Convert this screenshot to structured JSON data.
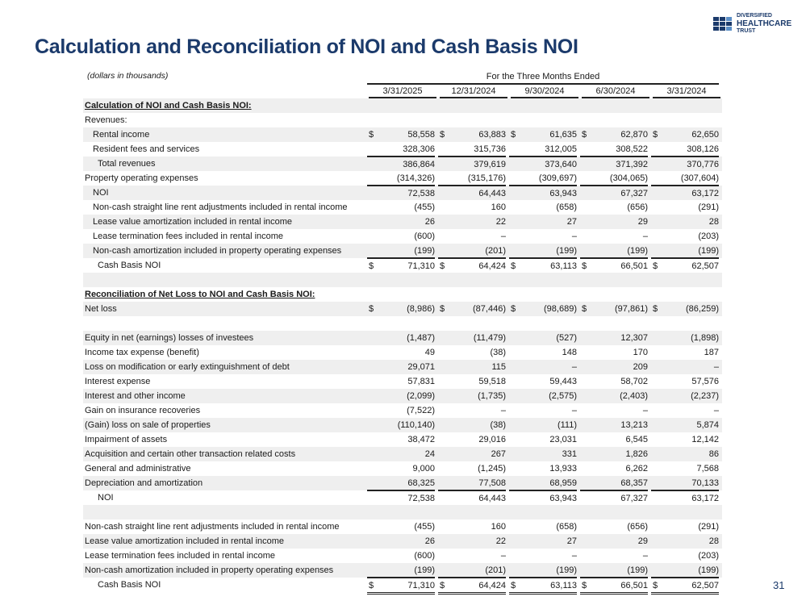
{
  "title": "Calculation and Reconciliation of NOI and Cash Basis NOI",
  "units": "(dollars in thousands)",
  "logo": {
    "line1": "DIVERSIFIED",
    "line2": "HEALTHCARE",
    "line3": "TRUST",
    "color": "#1b3a6b"
  },
  "page_number": "31",
  "table": {
    "period_header": "For the Three Months Ended",
    "columns": [
      "3/31/2025",
      "12/31/2024",
      "9/30/2024",
      "6/30/2024",
      "3/31/2024"
    ],
    "rows": [
      {
        "label": "Calculation of NOI and Cash Basis NOI:",
        "kind": "section"
      },
      {
        "label": "Revenues:",
        "kind": "label"
      },
      {
        "label": "Rental income",
        "indent": 1,
        "dollar": true,
        "values": [
          "58,558",
          "63,883",
          "61,635",
          "62,870",
          "62,650"
        ]
      },
      {
        "label": "Resident fees and services",
        "indent": 1,
        "values": [
          "328,306",
          "315,736",
          "312,005",
          "308,522",
          "308,126"
        ]
      },
      {
        "label": "Total revenues",
        "indent": 2,
        "rule": "top",
        "values": [
          "386,864",
          "379,619",
          "373,640",
          "371,392",
          "370,776"
        ]
      },
      {
        "label": "Property operating expenses",
        "values": [
          "(314,326)",
          "(315,176)",
          "(309,697)",
          "(304,065)",
          "(307,604)"
        ]
      },
      {
        "label": "NOI",
        "indent": 1,
        "rule": "top",
        "values": [
          "72,538",
          "64,443",
          "63,943",
          "67,327",
          "63,172"
        ]
      },
      {
        "label": "Non-cash straight line rent adjustments included in rental income",
        "indent": 1,
        "values": [
          "(455)",
          "160",
          "(658)",
          "(656)",
          "(291)"
        ]
      },
      {
        "label": "Lease value amortization included in rental income",
        "indent": 1,
        "values": [
          "26",
          "22",
          "27",
          "29",
          "28"
        ]
      },
      {
        "label": "Lease termination fees included in rental income",
        "indent": 1,
        "values": [
          "(600)",
          "–",
          "–",
          "–",
          "(203)"
        ]
      },
      {
        "label": "Non-cash amortization included in property operating expenses",
        "indent": 1,
        "values": [
          "(199)",
          "(201)",
          "(199)",
          "(199)",
          "(199)"
        ]
      },
      {
        "label": "Cash Basis NOI",
        "indent": 2,
        "rule": "both",
        "dollar": true,
        "values": [
          "71,310",
          "64,424",
          "63,113",
          "66,501",
          "62,507"
        ]
      },
      {
        "label": "",
        "kind": "blank"
      },
      {
        "label": "Reconciliation of Net Loss to NOI and Cash Basis NOI:",
        "kind": "section"
      },
      {
        "label": "Net loss",
        "dollar": true,
        "values": [
          "(8,986)",
          "(87,446)",
          "(98,689)",
          "(97,861)",
          "(86,259)"
        ]
      },
      {
        "label": "",
        "kind": "blank"
      },
      {
        "label": "Equity in net (earnings) losses of investees",
        "values": [
          "(1,487)",
          "(11,479)",
          "(527)",
          "12,307",
          "(1,898)"
        ]
      },
      {
        "label": "Income tax expense (benefit)",
        "values": [
          "49",
          "(38)",
          "148",
          "170",
          "187"
        ]
      },
      {
        "label": "Loss on modification or early extinguishment of debt",
        "values": [
          "29,071",
          "115",
          "–",
          "209",
          "–"
        ]
      },
      {
        "label": "Interest expense",
        "values": [
          "57,831",
          "59,518",
          "59,443",
          "58,702",
          "57,576"
        ]
      },
      {
        "label": "Interest and other income",
        "values": [
          "(2,099)",
          "(1,735)",
          "(2,575)",
          "(2,403)",
          "(2,237)"
        ]
      },
      {
        "label": "Gain on insurance recoveries",
        "values": [
          "(7,522)",
          "–",
          "–",
          "–",
          "–"
        ]
      },
      {
        "label": "(Gain) loss on sale of properties",
        "values": [
          "(110,140)",
          "(38)",
          "(111)",
          "13,213",
          "5,874"
        ]
      },
      {
        "label": "Impairment of assets",
        "values": [
          "38,472",
          "29,016",
          "23,031",
          "6,545",
          "12,142"
        ]
      },
      {
        "label": "Acquisition and certain other transaction related costs",
        "values": [
          "24",
          "267",
          "331",
          "1,826",
          "86"
        ]
      },
      {
        "label": "General and administrative",
        "values": [
          "9,000",
          "(1,245)",
          "13,933",
          "6,262",
          "7,568"
        ]
      },
      {
        "label": "Depreciation and amortization",
        "values": [
          "68,325",
          "77,508",
          "68,959",
          "68,357",
          "70,133"
        ]
      },
      {
        "label": "NOI",
        "indent": 2,
        "rule": "top",
        "values": [
          "72,538",
          "64,443",
          "63,943",
          "67,327",
          "63,172"
        ]
      },
      {
        "label": "",
        "kind": "blank"
      },
      {
        "label": "Non-cash straight line rent adjustments included in rental income",
        "values": [
          "(455)",
          "160",
          "(658)",
          "(656)",
          "(291)"
        ]
      },
      {
        "label": "Lease value amortization included in rental income",
        "values": [
          "26",
          "22",
          "27",
          "29",
          "28"
        ]
      },
      {
        "label": "Lease termination fees included in rental income",
        "values": [
          "(600)",
          "–",
          "–",
          "–",
          "(203)"
        ]
      },
      {
        "label": "Non-cash amortization included in property operating expenses",
        "values": [
          "(199)",
          "(201)",
          "(199)",
          "(199)",
          "(199)"
        ]
      },
      {
        "label": "Cash Basis NOI",
        "indent": 2,
        "rule": "both",
        "dollar": true,
        "values": [
          "71,310",
          "64,424",
          "63,113",
          "66,501",
          "62,507"
        ]
      }
    ],
    "currency_symbol": "$"
  }
}
